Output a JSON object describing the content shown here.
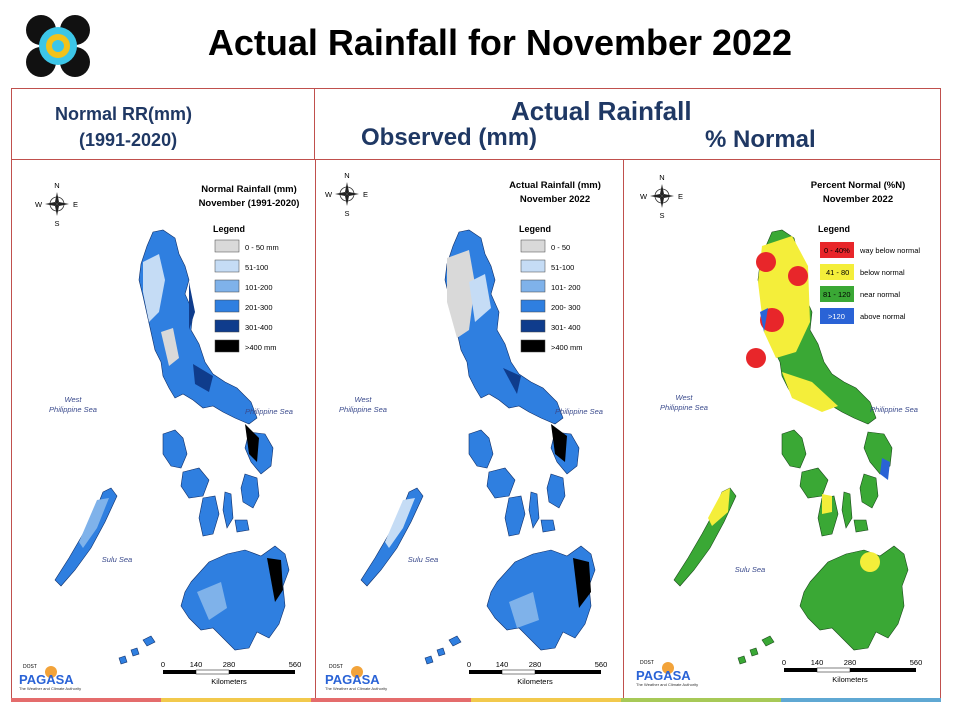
{
  "header": {
    "title": "Actual Rainfall for November 2022",
    "left_line1": "Normal RR(mm)",
    "left_line2": "(1991-2020)",
    "right_title": "Actual Rainfall",
    "observed": "Observed (mm)",
    "percent": "% Normal"
  },
  "panels": {
    "normal": {
      "title1": "Normal Rainfall (mm)",
      "title2": "November (1991-2020)",
      "legend_title": "Legend",
      "legend": [
        {
          "label": "0 - 50 mm",
          "color": "#d9d9d9"
        },
        {
          "label": "51-100",
          "color": "#c5dcf5"
        },
        {
          "label": "101-200",
          "color": "#7fb2ea"
        },
        {
          "label": "201-300",
          "color": "#2f7fe0"
        },
        {
          "label": "301-400",
          "color": "#0f3c8c"
        },
        {
          "label": ">400 mm",
          "color": "#000000"
        }
      ]
    },
    "actual": {
      "title1": "Actual Rainfall (mm)",
      "title2": "November 2022",
      "legend_title": "Legend",
      "legend": [
        {
          "label": "0 - 50",
          "color": "#d9d9d9"
        },
        {
          "label": "51-100",
          "color": "#c5dcf5"
        },
        {
          "label": "101- 200",
          "color": "#7fb2ea"
        },
        {
          "label": "200- 300",
          "color": "#2f7fe0"
        },
        {
          "label": "301- 400",
          "color": "#0f3c8c"
        },
        {
          "label": ">400 mm",
          "color": "#000000"
        }
      ]
    },
    "percent": {
      "title1": "Percent Normal (%N)",
      "title2": "November 2022",
      "legend_title": "Legend",
      "legend": [
        {
          "range": "0 - 40%",
          "label": "way below normal",
          "color": "#e8262a"
        },
        {
          "range": "41 - 80",
          "label": "below normal",
          "color": "#f4ee3a"
        },
        {
          "range": "81 - 120",
          "label": "near normal",
          "color": "#3aa835"
        },
        {
          "range": ">120",
          "label": "above normal",
          "color": "#2a63d6"
        }
      ]
    }
  },
  "labels": {
    "west_sea_1": "West",
    "west_sea_2": "Philippine Sea",
    "philippine_sea": "Philippine Sea",
    "sulu_sea": "Sulu Sea",
    "compass_n": "N",
    "compass_s": "S",
    "compass_e": "E",
    "compass_w": "W",
    "scale_0": "0",
    "scale_140": "140",
    "scale_280": "280",
    "scale_560": "560",
    "scale_unit": "Kilometers",
    "agency_top": "DOST",
    "agency_brand": "PAGASA",
    "agency_sub": "The Weather and Climate Authority"
  },
  "colors": {
    "frame": "#c0504d",
    "header_text": "#1f3864",
    "stripe": [
      "#e46c6c",
      "#f2c94c",
      "#a7c957",
      "#5fa8d3"
    ]
  }
}
